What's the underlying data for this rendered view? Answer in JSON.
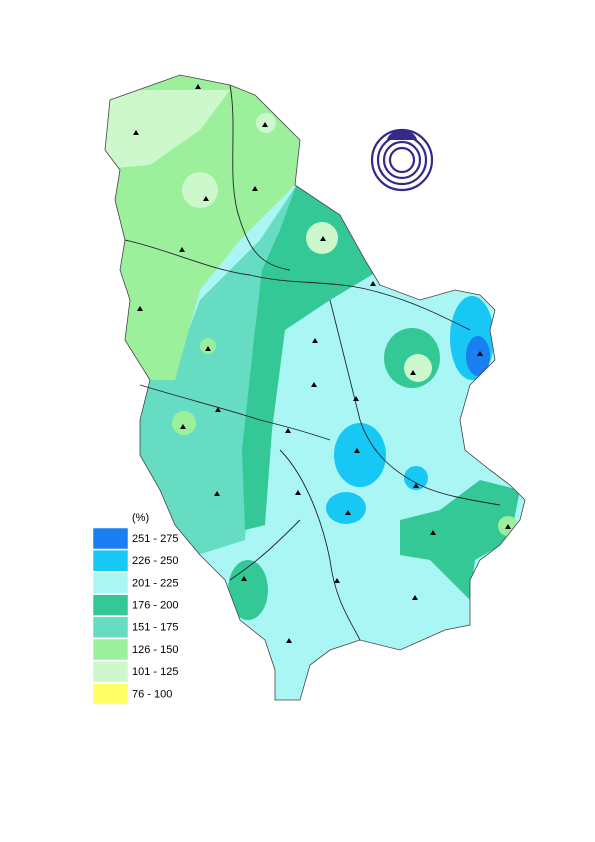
{
  "legend": {
    "unit": "(%)",
    "classes": [
      {
        "label": "251 - 275",
        "color": "#1a7ff0"
      },
      {
        "label": "226 - 250",
        "color": "#18c8f4"
      },
      {
        "label": "201 - 225",
        "color": "#aaf6f4"
      },
      {
        "label": "176 - 200",
        "color": "#33c896"
      },
      {
        "label": "151 - 175",
        "color": "#66dcc2"
      },
      {
        "label": "126 - 150",
        "color": "#9cf09c"
      },
      {
        "label": "101 - 125",
        "color": "#ccf8cc"
      },
      {
        "label": "76 - 100",
        "color": "#ffff66"
      }
    ]
  }
}
